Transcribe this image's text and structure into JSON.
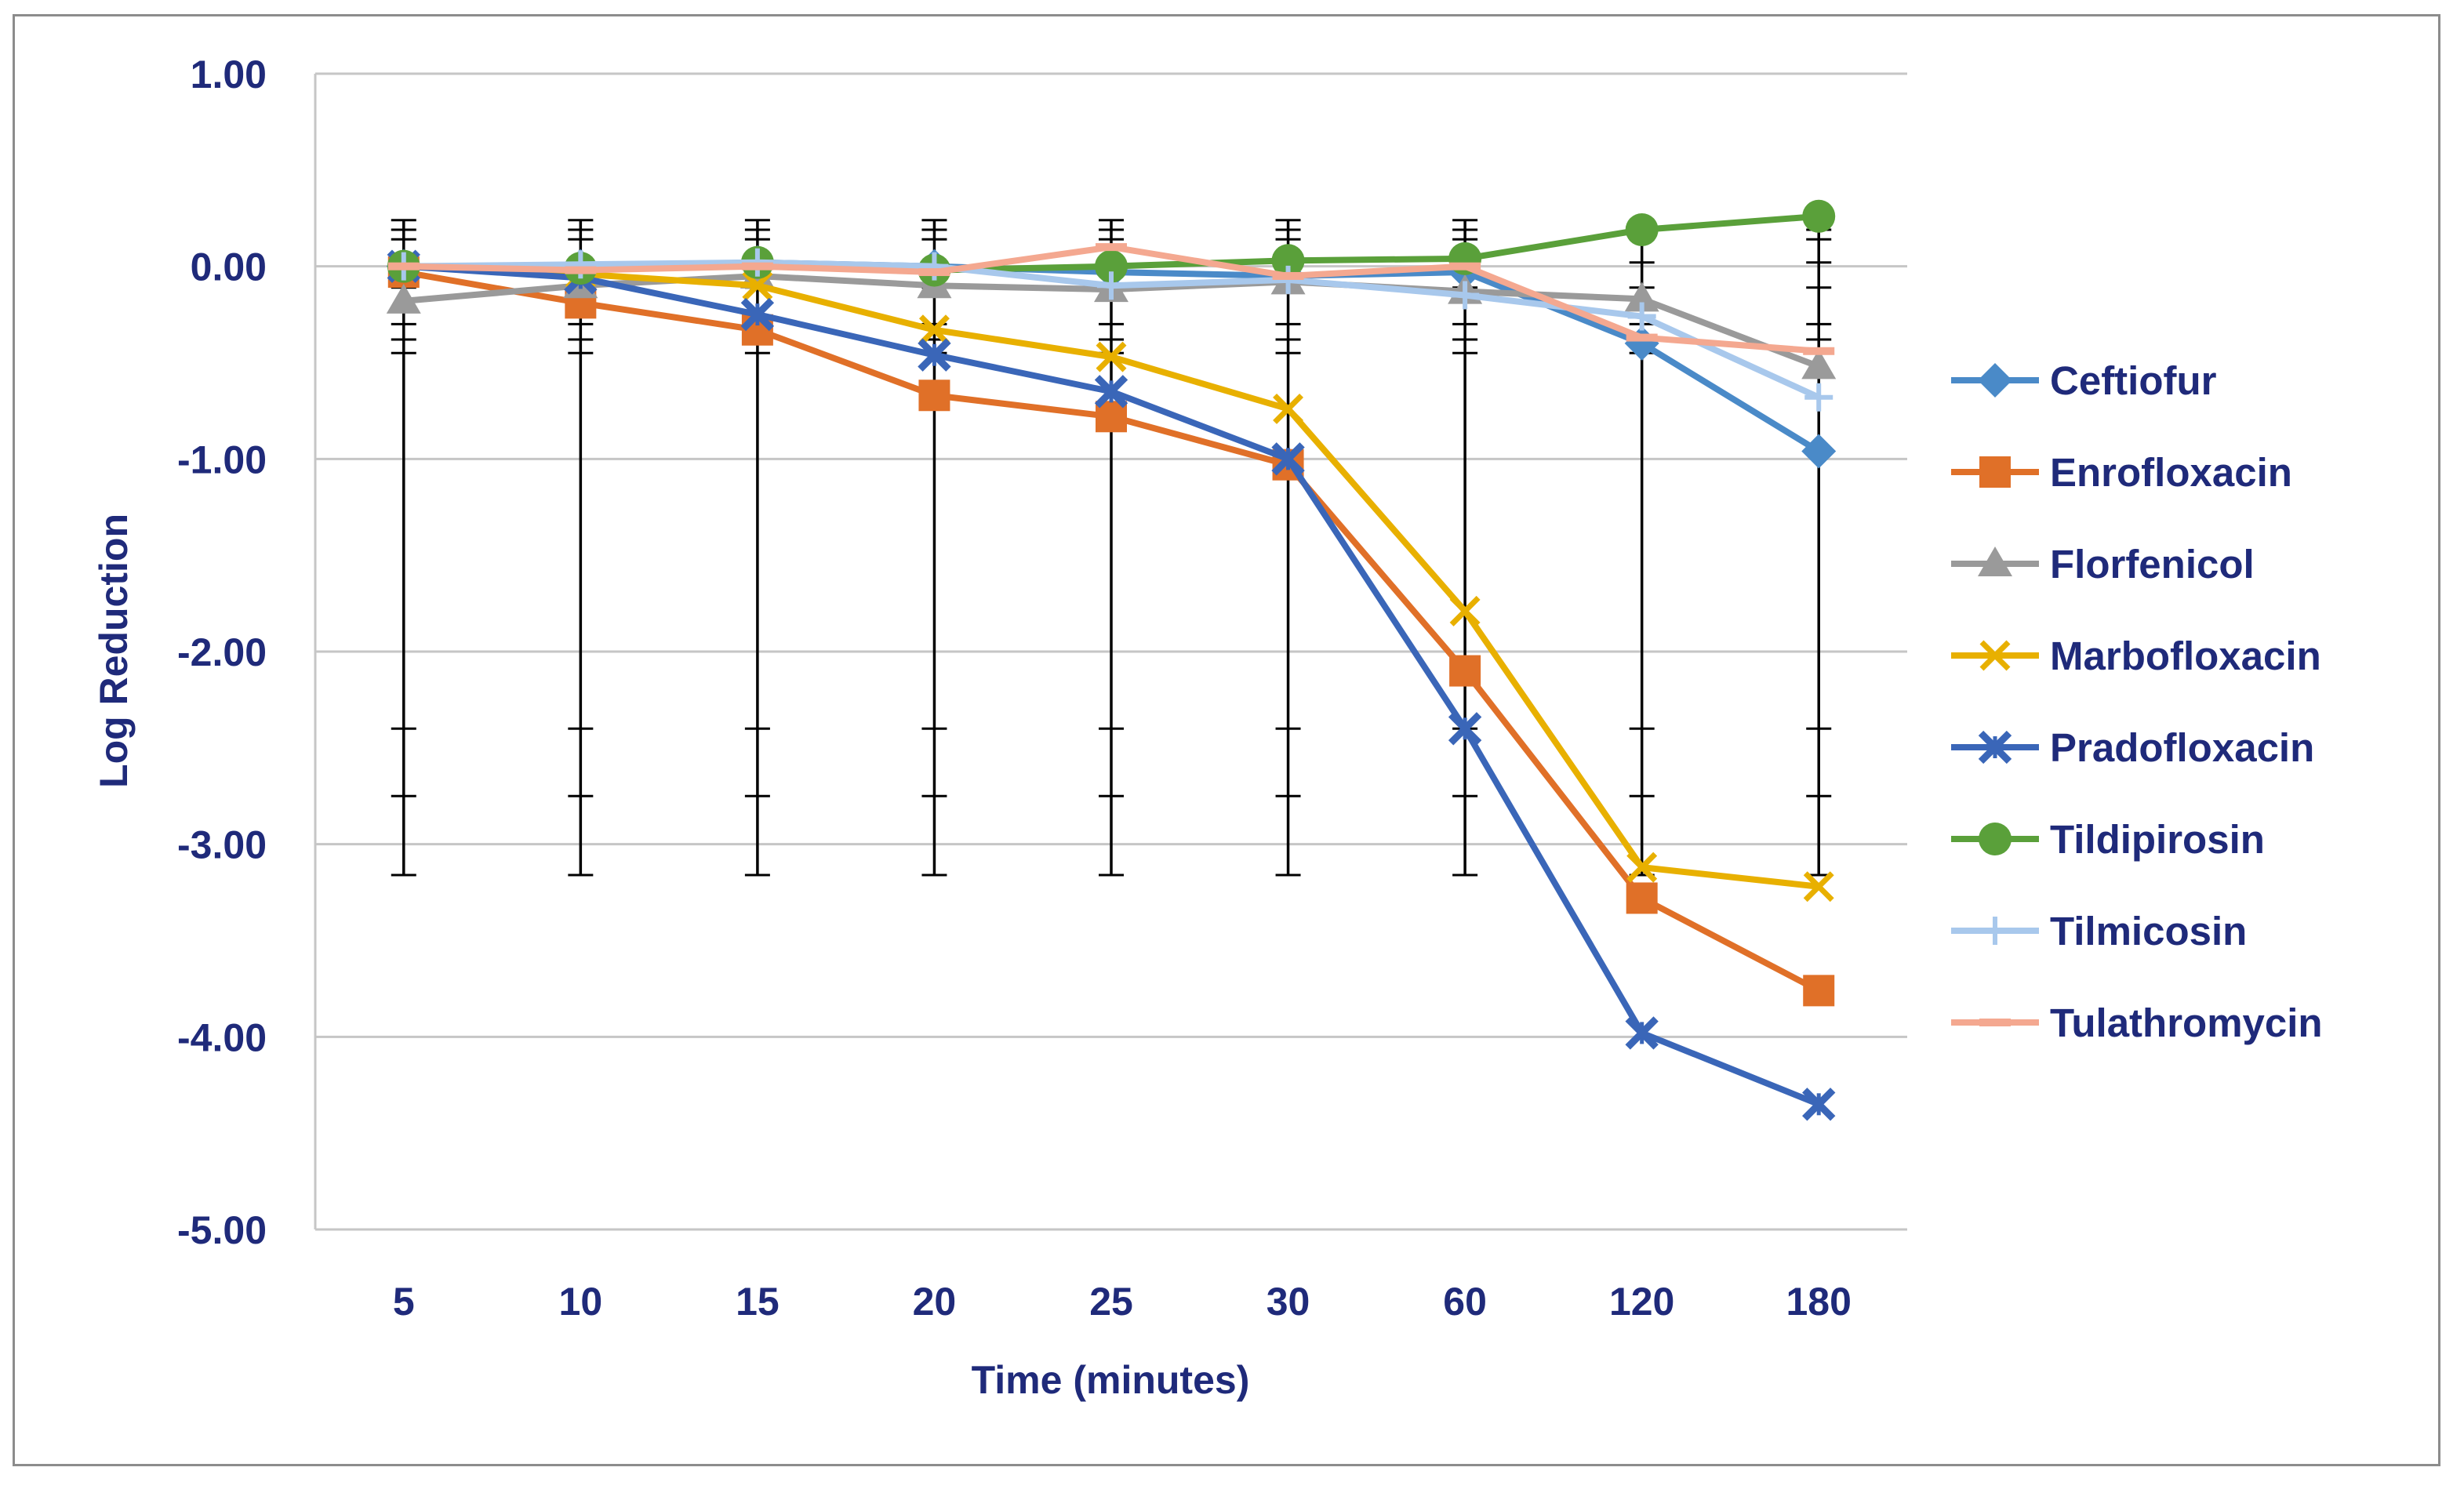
{
  "chart_data": {
    "type": "line",
    "title": "",
    "xlabel": "Time (minutes)",
    "ylabel": "Log Reduction",
    "categories": [
      "5",
      "10",
      "15",
      "20",
      "25",
      "30",
      "60",
      "120",
      "180"
    ],
    "ylim": [
      -5,
      1
    ],
    "yticks": [
      1,
      0,
      -1,
      -2,
      -3,
      -4,
      -5
    ],
    "ytick_labels": [
      "1.00",
      "0.00",
      "-1.00",
      "-2.00",
      "-3.00",
      "-4.00",
      "-5.00"
    ],
    "grid": true,
    "legend_position": "right",
    "error_bars": {
      "upper": 0.24,
      "lower": -3.16
    },
    "series": [
      {
        "name": "Ceftiofur",
        "color": "#4a8ac8",
        "marker": "diamond",
        "values": [
          0.0,
          0.0,
          0.02,
          0.0,
          -0.03,
          -0.05,
          -0.03,
          -0.4,
          -0.96
        ]
      },
      {
        "name": "Enrofloxacin",
        "color": "#e07028",
        "marker": "square",
        "values": [
          -0.03,
          -0.19,
          -0.33,
          -0.67,
          -0.78,
          -1.03,
          -2.1,
          -3.28,
          -3.76
        ]
      },
      {
        "name": "Florfenicol",
        "color": "#9a9a9a",
        "marker": "triangle",
        "values": [
          -0.18,
          -0.1,
          -0.05,
          -0.1,
          -0.12,
          -0.08,
          -0.13,
          -0.17,
          -0.52
        ]
      },
      {
        "name": "Marbofloxacin",
        "color": "#e8b000",
        "marker": "x",
        "values": [
          0.0,
          -0.04,
          -0.1,
          -0.33,
          -0.47,
          -0.74,
          -1.79,
          -3.12,
          -3.22
        ]
      },
      {
        "name": "Pradofloxacin",
        "color": "#3a66b8",
        "marker": "star",
        "values": [
          0.0,
          -0.06,
          -0.25,
          -0.46,
          -0.65,
          -1.0,
          -2.4,
          -3.98,
          -4.35
        ]
      },
      {
        "name": "Tildipirosin",
        "color": "#5aa03a",
        "marker": "circle",
        "values": [
          0.0,
          -0.01,
          0.02,
          -0.02,
          0.0,
          0.03,
          0.04,
          0.19,
          0.26
        ]
      },
      {
        "name": "Tilmicosin",
        "color": "#a8c8ec",
        "marker": "plus",
        "values": [
          0.0,
          0.01,
          0.02,
          0.0,
          -0.1,
          -0.07,
          -0.15,
          -0.26,
          -0.68
        ]
      },
      {
        "name": "Tulathromycin",
        "color": "#f4a890",
        "marker": "dash",
        "values": [
          0.0,
          -0.02,
          0.0,
          -0.03,
          0.1,
          -0.05,
          0.0,
          -0.37,
          -0.44
        ]
      }
    ]
  }
}
